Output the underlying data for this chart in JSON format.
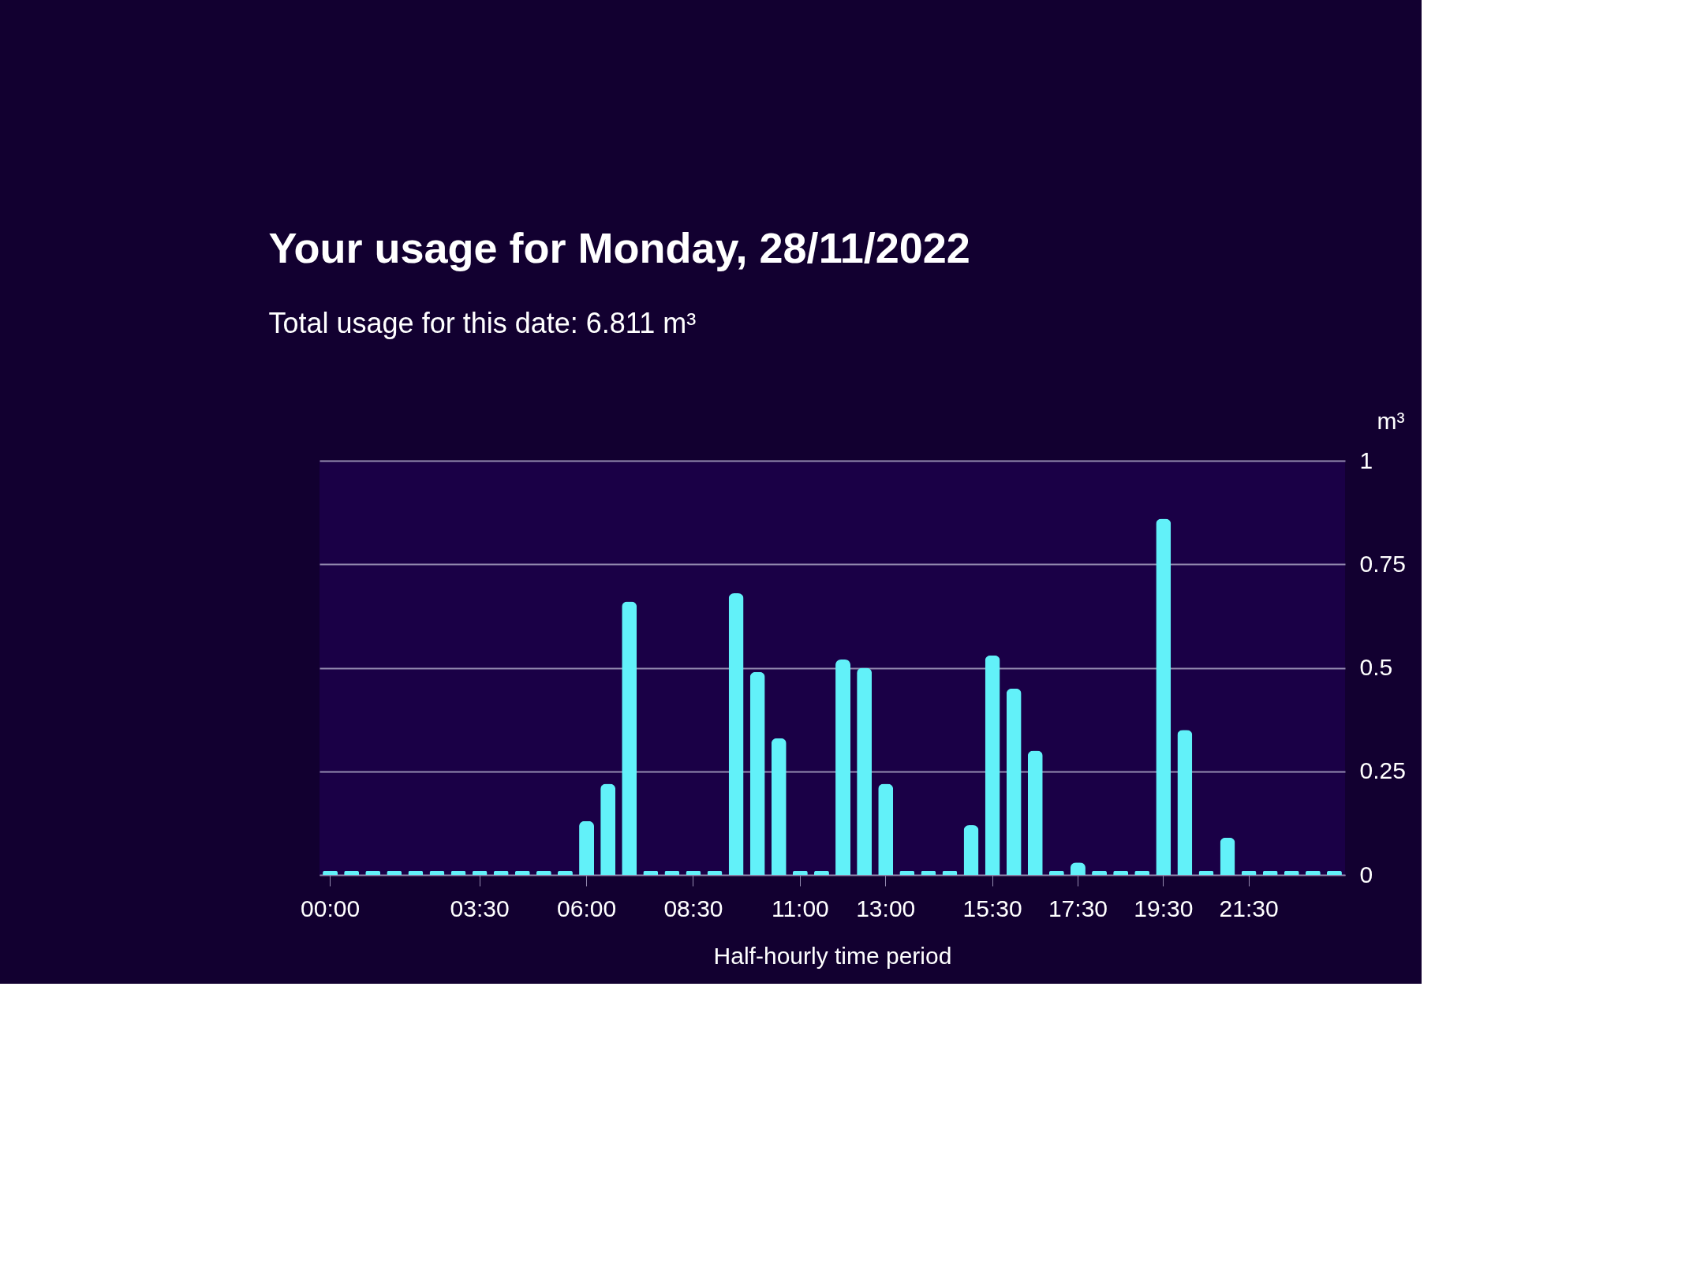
{
  "chart_data": {
    "type": "bar",
    "title": "Your usage for Monday, 28/11/2022",
    "subtitle": "Total usage for this date: 6.811 m³",
    "xlabel": "Half-hourly time period",
    "ylabel": "m³",
    "categories": [
      "00:00",
      null,
      null,
      null,
      null,
      null,
      null,
      "03:30",
      null,
      null,
      null,
      null,
      "06:00",
      null,
      null,
      null,
      null,
      "08:30",
      null,
      null,
      null,
      null,
      "11:00",
      null,
      null,
      null,
      "13:00",
      null,
      null,
      null,
      null,
      "15:30",
      null,
      null,
      null,
      "17:30",
      null,
      null,
      null,
      "19:30",
      null,
      null,
      null,
      "21:30",
      null,
      null,
      null,
      null
    ],
    "values": [
      0.01,
      0.01,
      0.01,
      0.01,
      0.01,
      0.01,
      0.01,
      0.01,
      0.01,
      0.01,
      0.01,
      0.01,
      0.13,
      0.22,
      0.66,
      0.01,
      0.01,
      0.01,
      0.01,
      0.68,
      0.49,
      0.33,
      0.01,
      0.01,
      0.52,
      0.5,
      0.22,
      0.01,
      0.01,
      0.01,
      0.12,
      0.53,
      0.45,
      0.3,
      0.01,
      0.03,
      0.01,
      0.01,
      0.01,
      0.86,
      0.35,
      0.01,
      0.09,
      0.01,
      0.01,
      0.01,
      0.01,
      0.01
    ],
    "color": "#62f1f9",
    "ylim": [
      0,
      1
    ],
    "yticks": [
      0,
      0.25,
      0.5,
      0.75,
      1
    ],
    "grid": "y"
  }
}
